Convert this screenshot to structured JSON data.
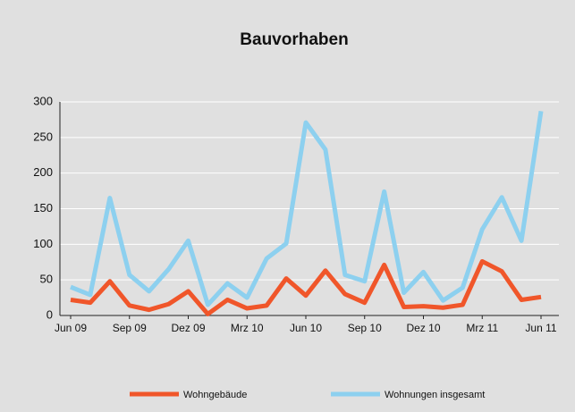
{
  "chart_data": {
    "type": "line",
    "title": "Bauvorhaben",
    "categories": [
      "Jun 09",
      null,
      null,
      "Sep 09",
      null,
      null,
      "Dez 09",
      null,
      null,
      "Mrz 10",
      null,
      null,
      "Jun 10",
      null,
      null,
      "Sep 10",
      null,
      null,
      "Dez 10",
      null,
      null,
      "Mrz 11",
      null,
      null,
      "Jun 11"
    ],
    "series": [
      {
        "name": "Wohngebäude",
        "color": "#f0562a",
        "values": [
          22,
          18,
          48,
          14,
          8,
          16,
          34,
          2,
          22,
          10,
          14,
          52,
          28,
          63,
          30,
          18,
          71,
          12,
          13,
          11,
          15,
          76,
          62,
          22,
          26
        ]
      },
      {
        "name": "Wohnungen insgesamt",
        "color": "#8dd0ef",
        "values": [
          40,
          29,
          165,
          57,
          34,
          65,
          105,
          15,
          45,
          25,
          80,
          101,
          271,
          233,
          57,
          48,
          174,
          32,
          61,
          21,
          39,
          121,
          166,
          105,
          287
        ]
      }
    ],
    "ylim": [
      0,
      300
    ],
    "yticks": [
      0,
      50,
      100,
      150,
      200,
      250,
      300
    ],
    "grid": true,
    "legend": "bottom"
  }
}
